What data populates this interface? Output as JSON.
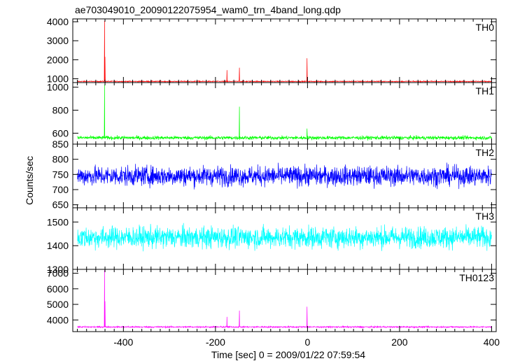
{
  "title": "ae703049010_20090122075954_wam0_trn_4band_long.qdp",
  "ylabel": "Counts/sec",
  "xlabel": "Time [sec] 0 = 2009/01/22 07:59:54",
  "chart_data": {
    "type": "line",
    "title": "ae703049010_20090122075954_wam0_trn_4band_long.qdp",
    "xlabel": "Time [sec] 0 = 2009/01/22 07:59:54",
    "ylabel": "Counts/sec",
    "xlim": [
      -510,
      410
    ],
    "xticks": [
      -400,
      -200,
      0,
      200,
      400
    ],
    "grid": false,
    "panels": [
      {
        "name": "TH0",
        "color": "#ff0000",
        "ylim": [
          800,
          4150
        ],
        "yticks": [
          1000,
          2000,
          3000,
          4000
        ],
        "baseline": 860,
        "noise": 25,
        "spikes": [
          [
            -441,
            4050
          ],
          [
            -440,
            2150
          ],
          [
            -175,
            1450
          ],
          [
            -148,
            1580
          ],
          [
            -1,
            2080
          ]
        ]
      },
      {
        "name": "TH1",
        "color": "#00ff00",
        "ylim": [
          505,
          1040
        ],
        "yticks": [
          600,
          800,
          1000
        ],
        "baseline": 560,
        "noise": 16,
        "spikes": [
          [
            -441,
            1020
          ],
          [
            -148,
            830
          ],
          [
            -1,
            640
          ]
        ]
      },
      {
        "name": "TH2",
        "color": "#0000ff",
        "ylim": [
          640,
          850
        ],
        "yticks": [
          650,
          700,
          750,
          800,
          850
        ],
        "baseline": 745,
        "noise": 32,
        "spikes": []
      },
      {
        "name": "TH3",
        "color": "#00ffff",
        "ylim": [
          1300,
          1560
        ],
        "yticks": [
          1300,
          1400,
          1500
        ],
        "baseline": 1435,
        "noise": 45,
        "spikes": []
      },
      {
        "name": "TH0123",
        "color": "#ff00ff",
        "ylim": [
          3250,
          7250
        ],
        "yticks": [
          4000,
          5000,
          6000,
          7000
        ],
        "baseline": 3550,
        "noise": 45,
        "spikes": [
          [
            -441,
            7200
          ],
          [
            -440,
            5200
          ],
          [
            -175,
            4200
          ],
          [
            -148,
            4600
          ],
          [
            -1,
            4850
          ]
        ]
      }
    ]
  }
}
